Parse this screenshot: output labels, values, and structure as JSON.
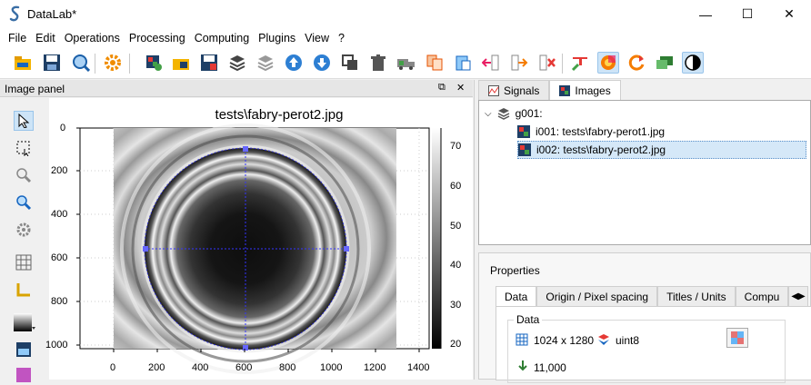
{
  "window": {
    "title": "DataLab*",
    "minimize": "—",
    "maximize": "☐",
    "close": "✕"
  },
  "menu": [
    "File",
    "Edit",
    "Operations",
    "Processing",
    "Computing",
    "Plugins",
    "View",
    "?"
  ],
  "panel": {
    "title": "Image panel",
    "float_btn": "⧉",
    "close_btn": "✕"
  },
  "plot": {
    "title": "tests\\fabry-perot2.jpg",
    "x_ticks": [
      "0",
      "200",
      "400",
      "600",
      "800",
      "1000",
      "1200",
      "1400"
    ],
    "y_ticks": [
      "0",
      "200",
      "400",
      "600",
      "800",
      "1000"
    ],
    "colorbar_ticks": [
      "70",
      "60",
      "50",
      "40",
      "30",
      "20"
    ]
  },
  "right": {
    "tabs": [
      "Signals",
      "Images"
    ],
    "tree": {
      "group": "g001:",
      "items": [
        "i001: tests\\fabry-perot1.jpg",
        "i002: tests\\fabry-perot2.jpg"
      ]
    },
    "properties": {
      "label": "Properties",
      "tabs": [
        "Data",
        "Origin / Pixel spacing",
        "Titles / Units",
        "Compu"
      ],
      "group_label": "Data",
      "size": "1024 x 1280",
      "dtype": "uint8",
      "value": "11,000"
    }
  },
  "colors": {
    "accent": "#cde4f7",
    "selection": "#d5e8f8"
  }
}
